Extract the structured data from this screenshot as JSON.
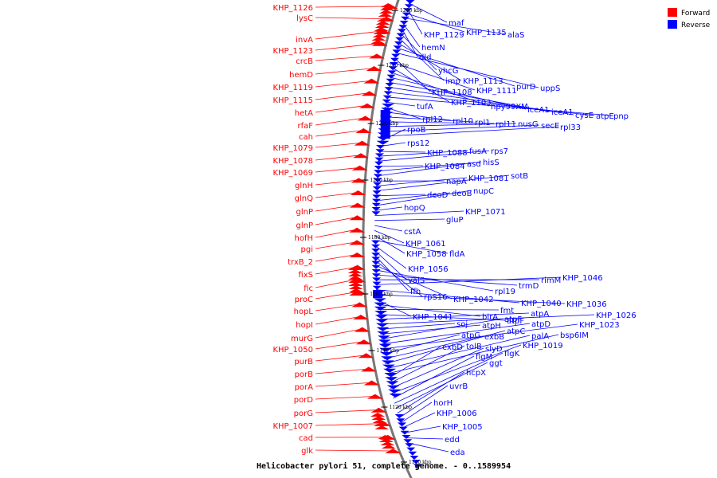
{
  "title": "Helicobacter pylori 51, complete genome. - 0..1589954",
  "legend": [
    {
      "label": "Forward",
      "color": "#ff0000"
    },
    {
      "label": "Reverse",
      "color": "#0000ff"
    }
  ],
  "colors": {
    "forward": "#ff0000",
    "reverse": "#0000ff",
    "backbone": "#777777"
  },
  "ticks": [
    "1260 kbp",
    "1240 kbp",
    "1220 kbp",
    "1200 kbp",
    "1180 kbp",
    "1160 kbp",
    "1140 kbp",
    "1120 kbp",
    "1100 kbp"
  ],
  "forward_genes": [
    "KHP_1126",
    "lysC",
    "invA",
    "KHP_1123",
    "crcB",
    "hemD",
    "KHP_1119",
    "KHP_1115",
    "hetA",
    "rfaF",
    "cah",
    "KHP_1079",
    "KHP_1078",
    "KHP_1069",
    "glnH",
    "glnQ",
    "glnP",
    "glnP",
    "hofH",
    "pgi",
    "trxB_2",
    "fixS",
    "fic",
    "proC",
    "hopL",
    "hopI",
    "murG",
    "KHP_1050",
    "purB",
    "porB",
    "porA",
    "porD",
    "porG",
    "KHP_1007",
    "cad",
    "glk"
  ],
  "reverse_genes": [
    "maf",
    "KHP_1129",
    "KHP_1135",
    "alaS",
    "hemN",
    "dld",
    "yhcG",
    "imp",
    "KHP_1113",
    "purD",
    "uppS",
    "KHP_1108",
    "KHP_1111",
    "KHP_1103",
    "hpy99XM",
    "iceA1",
    "iceA1",
    "cysE",
    "atpE",
    "pnp",
    "tufA",
    "rpl12",
    "rpl10",
    "rpl1",
    "rpl11",
    "nusG",
    "secE",
    "rpl33",
    "rpoB",
    "rps12",
    "KHP_1088",
    "fusA",
    "rps7",
    "KHP_1084",
    "asd",
    "hisS",
    "napA",
    "KHP_1081",
    "sotB",
    "deoD",
    "deoB",
    "nupC",
    "hopQ",
    "KHP_1071",
    "gluP",
    "cstA",
    "KHP_1061",
    "KHP_1058",
    "fldA",
    "KHP_1056",
    "valS",
    "ffh",
    "rpS16",
    "KHP_1042",
    "rpl19",
    "trmD",
    "rimM",
    "KHP_1046",
    "KHP_1040",
    "KHP_1036",
    "KHP_1041",
    "birA",
    "fmt",
    "atpF",
    "atpA",
    "KHP_1026",
    "soj",
    "atpH",
    "atpF",
    "atpD",
    "KHP_1023",
    "atpG",
    "exbB",
    "atpC",
    "palA",
    "bsp6IM",
    "exbD",
    "tolB",
    "slyD",
    "KHP_1019",
    "flgM",
    "flgK",
    "ggt",
    "hcpX",
    "uvrB",
    "horH",
    "KHP_1006",
    "KHP_1005",
    "edd",
    "eda"
  ]
}
